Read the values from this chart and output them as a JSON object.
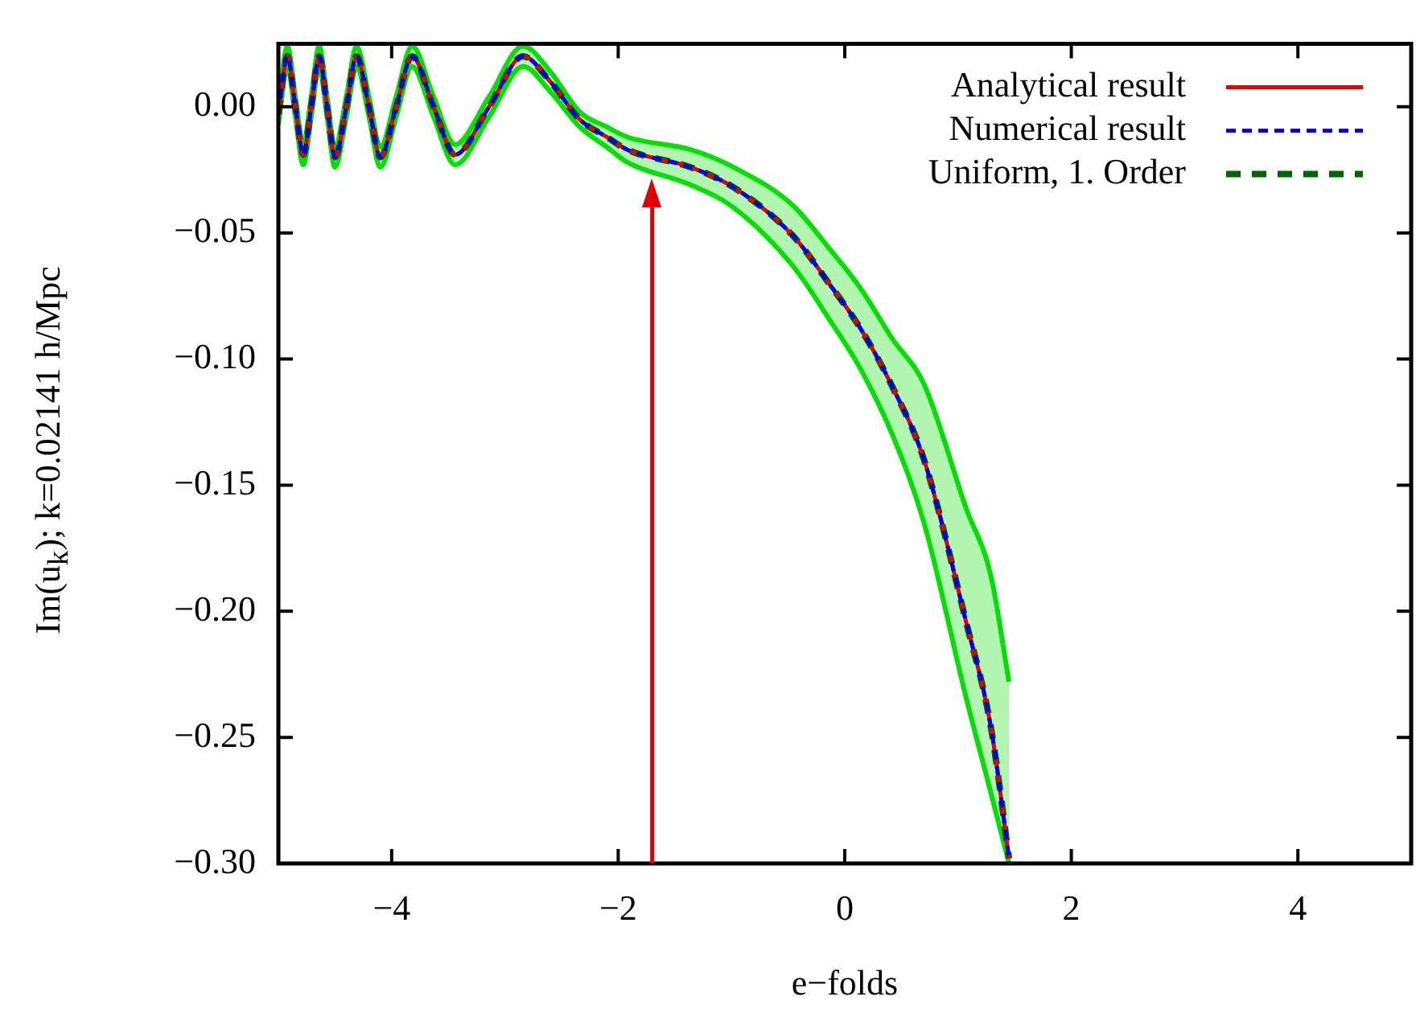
{
  "chart_data": {
    "type": "line",
    "xlabel": "e−folds",
    "ylabel": "Im(u$_{k}$); k=0.02141 h/Mpc",
    "x": [
      -5,
      -4.92,
      -4.85,
      -4.78,
      -4.71,
      -4.64,
      -4.57,
      -4.5,
      -4.4,
      -4.31,
      -4.2,
      -4.1,
      -3.96,
      -3.82,
      -3.63,
      -3.44,
      -3.14,
      -2.84,
      -2.6,
      -2.34,
      -2.1,
      -1.92,
      -1.36,
      -0.98,
      -0.46,
      -0.14,
      0.14,
      0.42,
      0.7,
      1.07,
      1.29,
      1.45
    ],
    "series": [
      {
        "name": "Analytical result",
        "color": "#e00000",
        "line_style": "solid",
        "values": [
          -0.003,
          0.02,
          0,
          -0.019,
          0,
          0.02,
          0,
          -0.02,
          0,
          0.02,
          0,
          -0.02,
          0,
          0.02,
          0,
          -0.019,
          0,
          0.02,
          0.01,
          -0.005,
          -0.012,
          -0.017,
          -0.024,
          -0.032,
          -0.051,
          -0.07,
          -0.088,
          -0.111,
          -0.14,
          -0.204,
          -0.246,
          -0.298
        ]
      },
      {
        "name": "Numerical result",
        "color": "#0000e0",
        "line_style": "dotted",
        "values": [
          -0.003,
          0.02,
          0,
          -0.019,
          0,
          0.02,
          0,
          -0.02,
          0,
          0.02,
          0,
          -0.02,
          0,
          0.02,
          0,
          -0.019,
          0,
          0.02,
          0.01,
          -0.005,
          -0.012,
          -0.017,
          -0.024,
          -0.032,
          -0.051,
          -0.07,
          -0.088,
          -0.111,
          -0.14,
          -0.204,
          -0.246,
          -0.298
        ]
      },
      {
        "name": "Uniform, 1. Order",
        "color": "#006400",
        "line_style": "dashed",
        "values": [
          -0.003,
          0.02,
          0,
          -0.019,
          0,
          0.02,
          0,
          -0.02,
          0,
          0.02,
          0,
          -0.02,
          0,
          0.02,
          0,
          -0.019,
          0,
          0.02,
          0.01,
          -0.005,
          -0.012,
          -0.017,
          -0.024,
          -0.032,
          -0.051,
          -0.07,
          -0.088,
          -0.111,
          -0.14,
          -0.204,
          -0.246,
          -0.298
        ],
        "lower": [
          -0.007,
          0.016,
          -0.004,
          -0.023,
          -0.004,
          0.016,
          -0.004,
          -0.024,
          -0.004,
          0.016,
          -0.004,
          -0.024,
          -0.004,
          0.016,
          -0.004,
          -0.023,
          -0.004,
          0.016,
          0.006,
          -0.008,
          -0.016,
          -0.022,
          -0.031,
          -0.04,
          -0.063,
          -0.084,
          -0.104,
          -0.13,
          -0.165,
          -0.234,
          -0.272,
          -0.3
        ],
        "upper": [
          0.001,
          0.024,
          0.004,
          -0.015,
          0.004,
          0.024,
          0.004,
          -0.016,
          0.004,
          0.024,
          0.004,
          -0.016,
          0.004,
          0.024,
          0.004,
          -0.015,
          0.004,
          0.024,
          0.014,
          -0.002,
          -0.008,
          -0.012,
          -0.017,
          -0.024,
          -0.039,
          -0.056,
          -0.072,
          -0.092,
          -0.11,
          -0.159,
          -0.186,
          -0.228
        ]
      },
      {
        "color": "#00e000",
        "line_style": "solid",
        "values": [
          -0.007,
          0.016,
          -0.004,
          -0.023,
          -0.004,
          0.016,
          -0.004,
          -0.024,
          -0.004,
          0.016,
          -0.004,
          -0.024,
          -0.004,
          0.016,
          -0.004,
          -0.023,
          -0.004,
          0.016,
          0.006,
          -0.008,
          -0.016,
          -0.022,
          -0.031,
          -0.04,
          -0.063,
          -0.084,
          -0.104,
          -0.13,
          -0.165,
          -0.234,
          -0.272,
          -0.3
        ]
      },
      {
        "color": "#00e000",
        "line_style": "solid",
        "values": [
          0.001,
          0.024,
          0.004,
          -0.015,
          0.004,
          0.024,
          0.004,
          -0.016,
          0.004,
          0.024,
          0.004,
          -0.016,
          0.004,
          0.024,
          0.004,
          -0.015,
          0.004,
          0.024,
          0.014,
          -0.002,
          -0.008,
          -0.012,
          -0.017,
          -0.024,
          -0.039,
          -0.056,
          -0.072,
          -0.092,
          -0.11,
          -0.159,
          -0.186,
          -0.228
        ]
      }
    ],
    "xlim": [
      -5,
      5
    ],
    "xticks": [
      {
        "value": -4,
        "label": "−4"
      },
      {
        "value": -2,
        "label": "−2"
      },
      0,
      2,
      4
    ],
    "ylim": [
      -0.3,
      0.025
    ],
    "yticks": [
      {
        "value": 0,
        "label": "0.00"
      },
      {
        "value": -0.05,
        "label": "−0.05"
      },
      {
        "value": -0.1,
        "label": "−0.10"
      },
      {
        "value": -0.15,
        "label": "−0.15"
      },
      {
        "value": -0.2,
        "label": "−0.20"
      },
      {
        "value": -0.25,
        "label": "−0.25"
      },
      {
        "value": -0.3,
        "label": "−0.30"
      }
    ],
    "ref_lines": [
      {
        "axis": "x",
        "value": -1.7,
        "color": "#e00000"
      }
    ],
    "grid": false,
    "legend": "top right",
    "marker": "none"
  }
}
